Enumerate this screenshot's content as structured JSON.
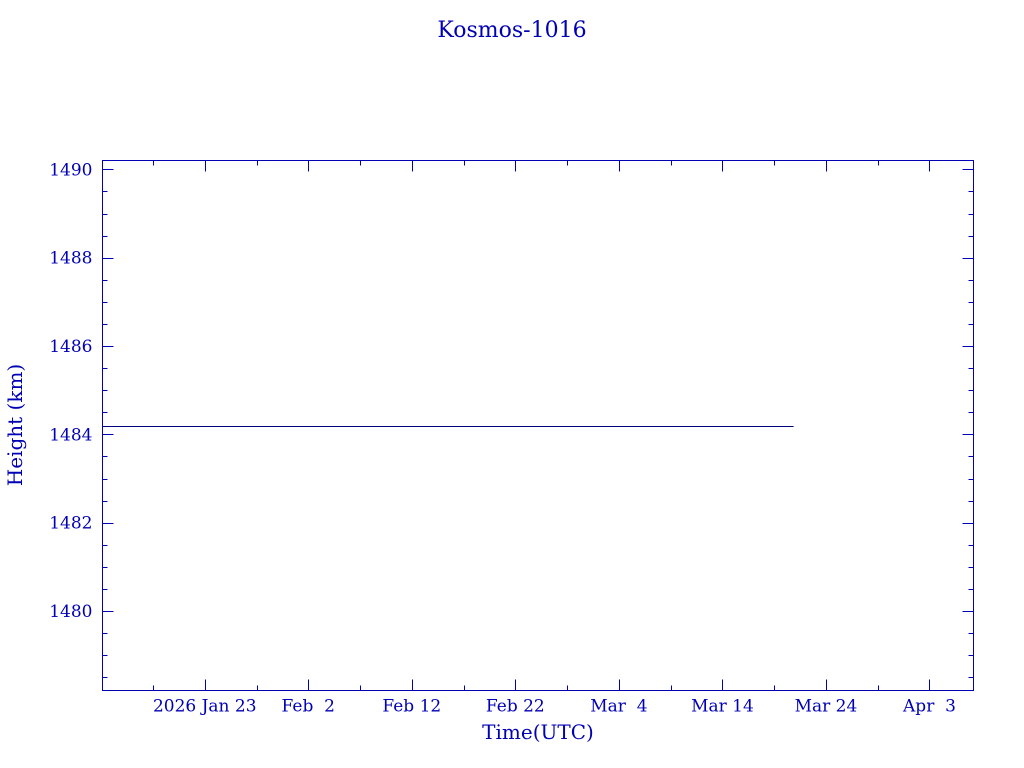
{
  "chart_data": {
    "type": "line",
    "title": "Kosmos-1016",
    "xlabel": "Time(UTC)",
    "ylabel": "Height (km)",
    "xlim": [
      "2026-01-13T03:00",
      "2026-04-07T06:00"
    ],
    "ylim": [
      1478.2,
      1490.2
    ],
    "y_ticks": [
      1480,
      1482,
      1484,
      1486,
      1488,
      1490
    ],
    "y_tick_labels": [
      "1480",
      "1482",
      "1484",
      "1486",
      "1488",
      "1490"
    ],
    "x_ticks": [
      "2026-01-23",
      "2026-02-02",
      "2026-02-12",
      "2026-02-22",
      "2026-03-04",
      "2026-03-14",
      "2026-03-24",
      "2026-04-03"
    ],
    "x_tick_labels": [
      "2026 Jan 23",
      "Feb  2",
      "Feb 12",
      "Feb 22",
      "Mar  4",
      "Mar 14",
      "Mar 24",
      "Apr  3"
    ],
    "grid": false,
    "series": [
      {
        "x": [
          "2026-01-13T03:00",
          "2026-03-20T21:00"
        ],
        "y": [
          1484.2,
          1484.2
        ]
      }
    ],
    "colors": {
      "axis": "#0000b4",
      "text": "#0000b4",
      "line": "#000080"
    }
  }
}
